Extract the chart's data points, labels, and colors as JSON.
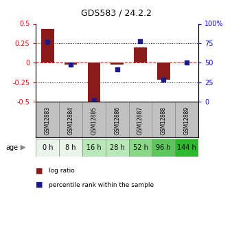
{
  "title": "GDS583 / 24.2.2",
  "samples": [
    "GSM12883",
    "GSM12884",
    "GSM12885",
    "GSM12886",
    "GSM12887",
    "GSM12888",
    "GSM12889"
  ],
  "ages": [
    "0 h",
    "8 h",
    "16 h",
    "28 h",
    "52 h",
    "96 h",
    "144 h"
  ],
  "log_ratios": [
    0.43,
    -0.02,
    -0.52,
    -0.02,
    0.2,
    -0.22,
    0.0
  ],
  "percentile_ranks": [
    77,
    48,
    2,
    42,
    78,
    28,
    50
  ],
  "ylim_left": [
    -0.5,
    0.5
  ],
  "ylim_right": [
    0,
    100
  ],
  "yticks_left": [
    -0.5,
    -0.25,
    0,
    0.25,
    0.5
  ],
  "yticks_right": [
    0,
    25,
    50,
    75,
    100
  ],
  "bar_color": "#8B1A1A",
  "dot_color": "#1A1A8B",
  "age_colors": [
    "#e8f5e8",
    "#e8f5e8",
    "#b8e8b8",
    "#b8e8b8",
    "#88d888",
    "#5cc85c",
    "#2eb82e"
  ],
  "gsm_bg_color": "#c0c0c0",
  "gsm_border_color": "#888888",
  "age_border_color": "#888888"
}
